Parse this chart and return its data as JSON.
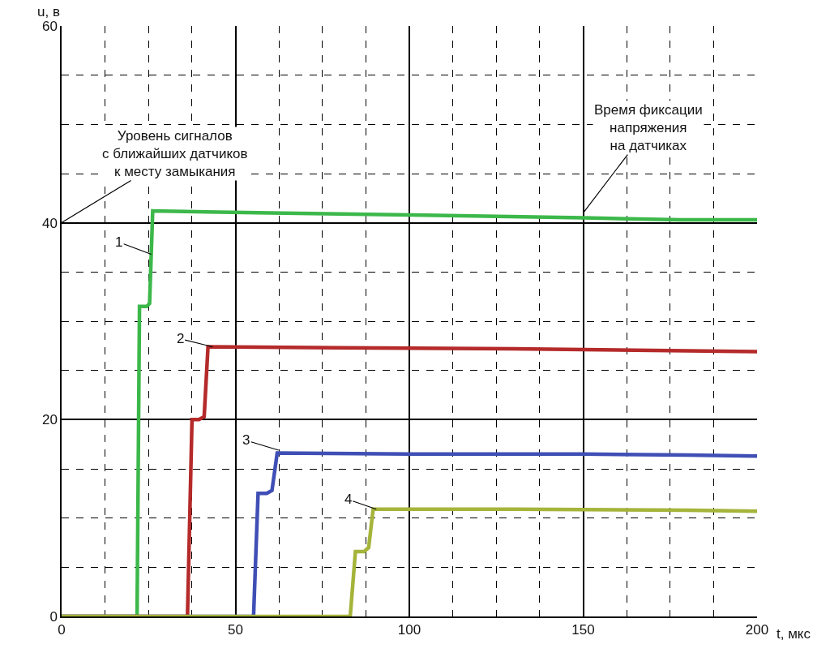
{
  "chart_data": {
    "type": "line",
    "xlabel": "t, мкс",
    "ylabel": "u, в",
    "xlim": [
      0,
      200
    ],
    "xticks": [
      0,
      50,
      100,
      150,
      200
    ],
    "ylim": [
      0,
      60
    ],
    "yticks": [
      0,
      20,
      40,
      60
    ],
    "grid": true,
    "series": [
      {
        "color": "#3cb84a",
        "x": [
          0,
          21.7,
          22.4,
          24.5,
          25.3,
          26.2,
          60,
          100,
          150,
          178,
          200
        ],
        "values": [
          0,
          0,
          31.5,
          31.5,
          31.8,
          41.2,
          41.0,
          40.8,
          40.5,
          40.3,
          40.3
        ]
      },
      {
        "color": "#b52a2a",
        "x": [
          0,
          36.2,
          37.5,
          39.5,
          41.0,
          42.1,
          80,
          130,
          180,
          200
        ],
        "values": [
          0,
          0,
          20.0,
          20.0,
          20.3,
          27.4,
          27.3,
          27.2,
          27.0,
          26.9
        ]
      },
      {
        "color": "#3f4fb5",
        "x": [
          0,
          55.2,
          56.5,
          59.0,
          60.5,
          62.0,
          100,
          150,
          180,
          200
        ],
        "values": [
          0,
          0,
          12.5,
          12.5,
          12.8,
          16.6,
          16.5,
          16.5,
          16.4,
          16.3
        ]
      },
      {
        "color": "#a5b43a",
        "x": [
          0,
          83.0,
          84.5,
          87.0,
          88.3,
          89.6,
          130,
          180,
          200
        ],
        "values": [
          0,
          0,
          6.6,
          6.6,
          7.0,
          10.9,
          10.9,
          10.8,
          10.7
        ]
      }
    ],
    "annotations": [
      "Уровень сигналов\nс ближайших датчиков\nк месту замыкания",
      {
        "text": "Время фиксации\nнапряжения\nна датчиках",
        "x": 150,
        "y": 41
      },
      {
        "text": "1",
        "x": 25.8,
        "y": 36.8
      },
      {
        "text": "2",
        "x": 43.4,
        "y": 27.4
      },
      {
        "text": "3",
        "x": 62.4,
        "y": 16.9
      },
      {
        "text": "4",
        "x": 90.5,
        "y": 10.9
      }
    ]
  }
}
